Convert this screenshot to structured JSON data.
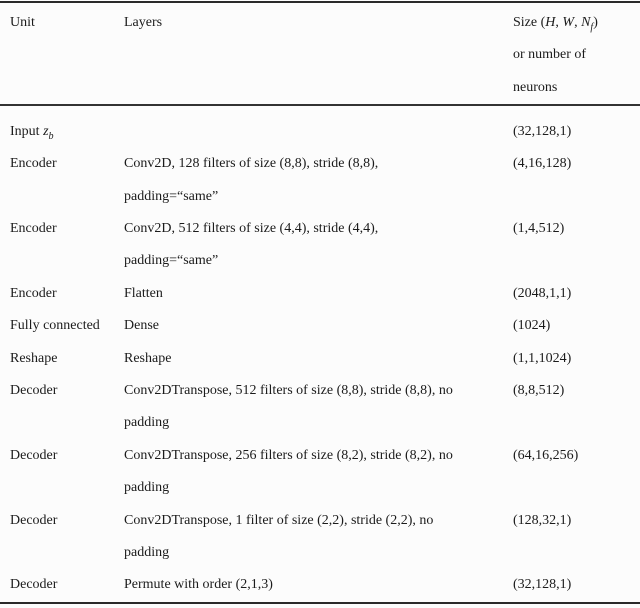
{
  "table": {
    "header": {
      "unit": "Unit",
      "layers": "Layers",
      "size_lines": [
        "Size ($H$, $W$, $N_f$)",
        "or number of",
        "neurons"
      ]
    },
    "rows": [
      {
        "unit": "Input $z_b$",
        "layers": [],
        "size": "(32,128,1)"
      },
      {
        "unit": "Encoder",
        "layers": [
          "Conv2D, 128 filters of size (8,8), stride (8,8),",
          "padding=“same”"
        ],
        "size": "(4,16,128)"
      },
      {
        "unit": "Encoder",
        "layers": [
          "Conv2D, 512 filters of size (4,4), stride (4,4),",
          "padding=“same”"
        ],
        "size": "(1,4,512)"
      },
      {
        "unit": "Encoder",
        "layers": [
          "Flatten"
        ],
        "size": "(2048,1,1)"
      },
      {
        "unit": "Fully connected",
        "layers": [
          "Dense"
        ],
        "size": "(1024)"
      },
      {
        "unit": "Reshape",
        "layers": [
          "Reshape"
        ],
        "size": "(1,1,1024)"
      },
      {
        "unit": "Decoder",
        "layers": [
          "Conv2DTranspose, 512 filters of size (8,8), stride (8,8), no",
          "padding"
        ],
        "size": "(8,8,512)"
      },
      {
        "unit": "Decoder",
        "layers": [
          "Conv2DTranspose, 256 filters of size (8,2), stride (8,2), no",
          "padding"
        ],
        "size": "(64,16,256)"
      },
      {
        "unit": "Decoder",
        "layers": [
          "Conv2DTranspose, 1 filter of size (2,2), stride (2,2), no",
          "padding"
        ],
        "size": "(128,32,1)"
      },
      {
        "unit": "Decoder",
        "layers": [
          "Permute with order (2,1,3)"
        ],
        "size": "(32,128,1)"
      }
    ],
    "rule_color": "#2a2a2a",
    "text_color": "#1b1b1b",
    "background_color": "#fcfcfc"
  }
}
